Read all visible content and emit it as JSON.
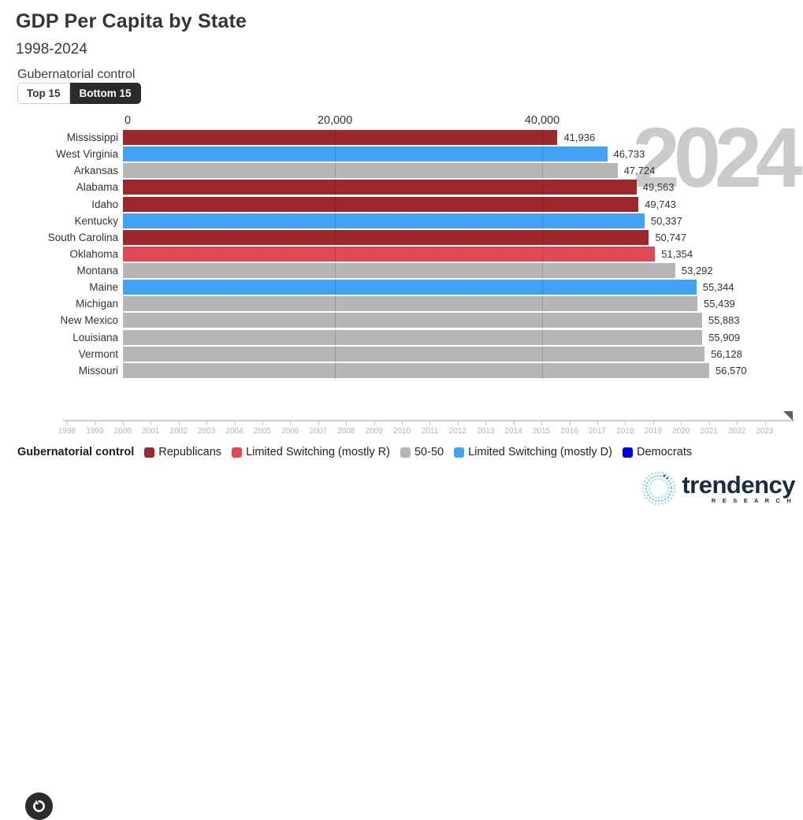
{
  "header": {
    "title": "GDP Per Capita by State",
    "subtitle": "1998-2024",
    "control_label": "Gubernatorial control",
    "toggle": {
      "top_label": "Top 15",
      "bottom_label": "Bottom 15",
      "selected": "Bottom 15"
    }
  },
  "chart_data": {
    "type": "bar",
    "orientation": "horizontal",
    "title": "GDP Per Capita by State",
    "subtitle": "1998-2024",
    "current_year_watermark": "2024",
    "xlabel": "",
    "ylabel": "",
    "xlim": [
      0,
      60000
    ],
    "x_ticks": [
      {
        "label": "0",
        "value": 0
      },
      {
        "label": "20,000",
        "value": 20000
      },
      {
        "label": "40,000",
        "value": 40000
      }
    ],
    "grid": "vertical",
    "categories": [
      "Mississippi",
      "West Virginia",
      "Arkansas",
      "Alabama",
      "Idaho",
      "Kentucky",
      "South Carolina",
      "Oklahoma",
      "Montana",
      "Maine",
      "Michigan",
      "New Mexico",
      "Louisiana",
      "Vermont",
      "Missouri"
    ],
    "values": [
      41936,
      46733,
      47724,
      49563,
      49743,
      50337,
      50747,
      51354,
      53292,
      55344,
      55439,
      55883,
      55909,
      56128,
      56570
    ],
    "value_labels": [
      "41,936",
      "46,733",
      "47,724",
      "49,563",
      "49,743",
      "50,337",
      "50,747",
      "51,354",
      "53,292",
      "55,344",
      "55,439",
      "55,883",
      "55,909",
      "56,128",
      "56,570"
    ],
    "party": [
      "republicans",
      "limited_d",
      "fifty_fifty",
      "republicans",
      "republicans",
      "limited_d",
      "republicans",
      "limited_r",
      "fifty_fifty",
      "limited_d",
      "fifty_fifty",
      "fifty_fifty",
      "fifty_fifty",
      "fifty_fifty",
      "fifty_fifty"
    ]
  },
  "colors": {
    "republicans": "#9e272b",
    "limited_r": "#e04a54",
    "fifty_fifty": "#b4b6b8",
    "limited_d": "#41a3f7",
    "democrats": "#0000ee",
    "watermark": "#cbcbcb",
    "accent_dark": "#2b2b2b"
  },
  "legend": {
    "title": "Gubernatorial control",
    "items": [
      {
        "label": "Republicans",
        "key": "republicans",
        "color": "#9e272b"
      },
      {
        "label": "Limited Switching (mostly R)",
        "key": "limited_r",
        "color": "#e04a54"
      },
      {
        "label": "50-50",
        "key": "fifty_fifty",
        "color": "#b4b6b8"
      },
      {
        "label": "Limited Switching (mostly D)",
        "key": "limited_d",
        "color": "#41a3f7"
      },
      {
        "label": "Democrats",
        "key": "democrats",
        "color": "#0000ee"
      }
    ]
  },
  "timeline": {
    "years": [
      "1998",
      "1999",
      "2000",
      "2001",
      "2002",
      "2003",
      "2004",
      "2005",
      "2006",
      "2007",
      "2008",
      "2009",
      "2010",
      "2011",
      "2012",
      "2013",
      "2014",
      "2015",
      "2016",
      "2017",
      "2018",
      "2019",
      "2020",
      "2021",
      "2022",
      "2023"
    ],
    "current_year": "2024"
  },
  "logo": {
    "text": "trendency",
    "sub": "R E S E A R C H"
  }
}
